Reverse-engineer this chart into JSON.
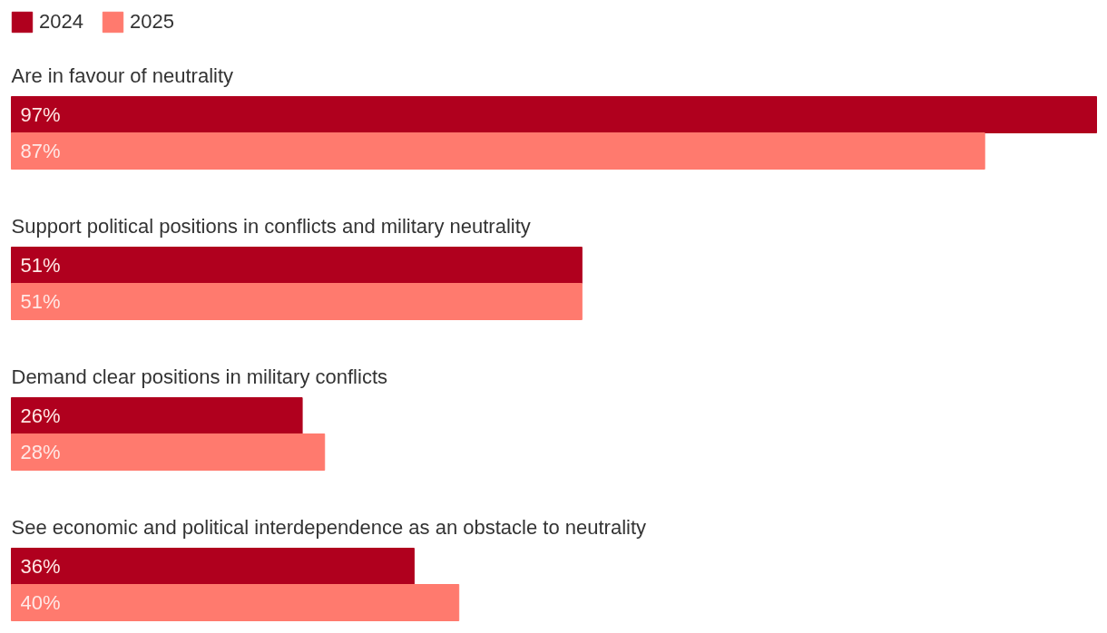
{
  "chart_data": {
    "type": "bar",
    "orientation": "horizontal",
    "categories": [
      "Are in favour of neutrality",
      "Support political positions in conflicts and military neutrality",
      "Demand clear positions in military conflicts",
      "See economic and political interdependence as an obstacle to neutrality"
    ],
    "xlim": [
      0,
      97
    ],
    "legend": "top left",
    "grid": false,
    "tick_labels": false,
    "series": [
      {
        "name": "2024",
        "color": "#b0001e",
        "values": [
          97,
          51,
          26,
          36
        ],
        "value_labels": [
          "97%",
          "51%",
          "26%",
          "36%"
        ]
      },
      {
        "name": "2025",
        "color": "#ff7a6e",
        "values": [
          87,
          51,
          28,
          40
        ],
        "value_labels": [
          "87%",
          "51%",
          "28%",
          "40%"
        ]
      }
    ]
  }
}
